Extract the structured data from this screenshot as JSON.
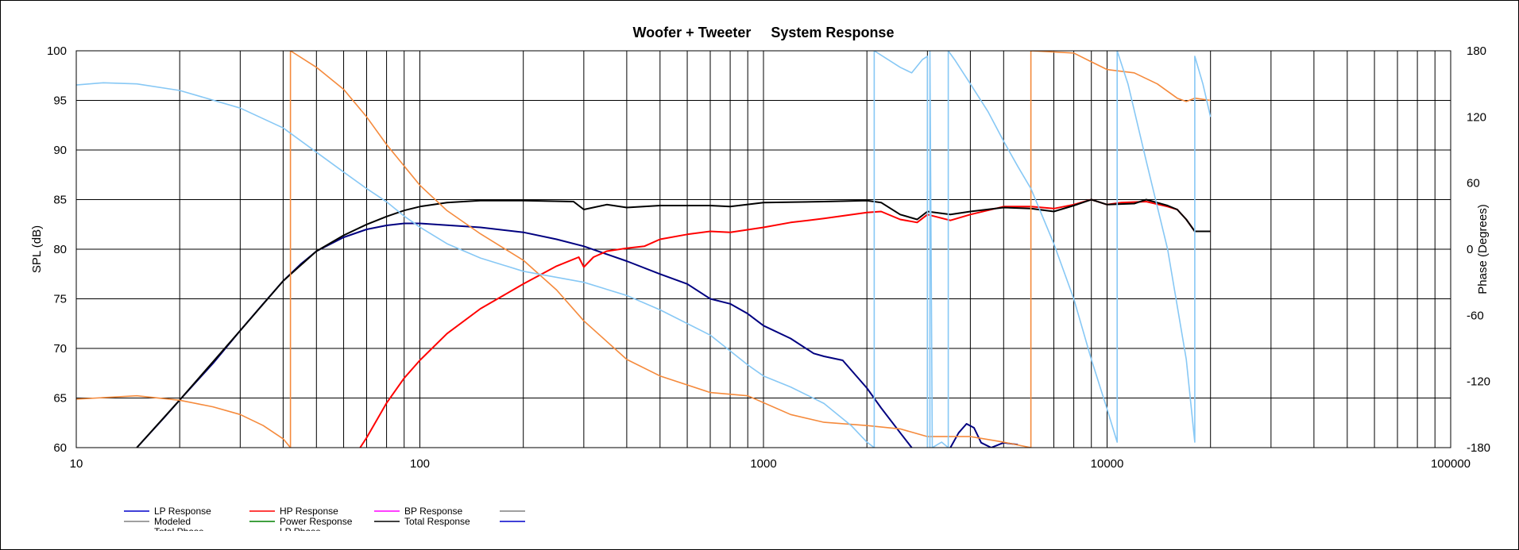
{
  "chart_data": {
    "type": "line",
    "title": "Woofer + Tweeter     System Response",
    "xlabel": "",
    "ylabel": "SPL (dB)",
    "y2label": "Phase (Degrees)",
    "x_scale": "log",
    "xlim": [
      10,
      100000
    ],
    "ylim": [
      60,
      100
    ],
    "y2lim": [
      -180,
      180
    ],
    "grid": true,
    "x_ticks": [
      "10",
      "100",
      "1000",
      "10000",
      "100000"
    ],
    "y_ticks": [
      "60",
      "65",
      "70",
      "75",
      "80",
      "85",
      "90",
      "95",
      "100"
    ],
    "y2_ticks": [
      "-180",
      "-120",
      "-60",
      "0",
      "60",
      "120",
      "180"
    ],
    "legend_position": "bottom",
    "legend": [
      {
        "label": "LP Response",
        "color": "#0000cc"
      },
      {
        "label": "HP Response",
        "color": "#ff0000"
      },
      {
        "label": "BP Response",
        "color": "#ff00ff"
      },
      {
        "label": "",
        "color": "#808080"
      },
      {
        "label": "Modeled",
        "color": "#808080"
      },
      {
        "label": "Power Response",
        "color": "#008000"
      },
      {
        "label": "Total Response",
        "color": "#000000"
      },
      {
        "label": "",
        "color": "#0000cc"
      },
      {
        "label": "Total Phase",
        "color": "#ffb080"
      },
      {
        "label": "LP Phase",
        "color": "#87c8f5"
      }
    ],
    "series": [
      {
        "name": "LP Response",
        "color": "#000080",
        "axis": "left",
        "points": [
          [
            15,
            60
          ],
          [
            18,
            63
          ],
          [
            20,
            64.8
          ],
          [
            25,
            68.5
          ],
          [
            30,
            71.8
          ],
          [
            35,
            74.5
          ],
          [
            40,
            76.8
          ],
          [
            45,
            78.5
          ],
          [
            50,
            79.8
          ],
          [
            60,
            81.2
          ],
          [
            70,
            82
          ],
          [
            80,
            82.4
          ],
          [
            90,
            82.6
          ],
          [
            100,
            82.6
          ],
          [
            150,
            82.2
          ],
          [
            200,
            81.7
          ],
          [
            250,
            81
          ],
          [
            300,
            80.3
          ],
          [
            350,
            79.5
          ],
          [
            400,
            78.8
          ],
          [
            500,
            77.5
          ],
          [
            600,
            76.5
          ],
          [
            700,
            75
          ],
          [
            800,
            74.5
          ],
          [
            900,
            73.5
          ],
          [
            1000,
            72.3
          ],
          [
            1200,
            71
          ],
          [
            1400,
            69.5
          ],
          [
            1500,
            69.2
          ],
          [
            1700,
            68.8
          ],
          [
            2000,
            66
          ],
          [
            2200,
            64
          ],
          [
            2500,
            61.5
          ],
          [
            2700,
            60
          ]
        ]
      },
      {
        "name": "LP Response (tail)",
        "color": "#000080",
        "axis": "left",
        "points": [
          [
            3500,
            60
          ],
          [
            3700,
            61.5
          ],
          [
            3900,
            62.4
          ],
          [
            4100,
            62
          ],
          [
            4300,
            60.5
          ],
          [
            4600,
            60
          ],
          [
            5000,
            60.5
          ],
          [
            5500,
            60.3
          ]
        ]
      },
      {
        "name": "HP Response",
        "color": "#ff0000",
        "axis": "left",
        "points": [
          [
            67,
            60
          ],
          [
            70,
            61
          ],
          [
            80,
            64.5
          ],
          [
            90,
            67
          ],
          [
            100,
            68.8
          ],
          [
            120,
            71.5
          ],
          [
            150,
            74
          ],
          [
            200,
            76.5
          ],
          [
            250,
            78.3
          ],
          [
            290,
            79.2
          ],
          [
            300,
            78.2
          ],
          [
            320,
            79.2
          ],
          [
            350,
            79.8
          ],
          [
            400,
            80.1
          ],
          [
            450,
            80.3
          ],
          [
            500,
            81
          ],
          [
            600,
            81.5
          ],
          [
            700,
            81.8
          ],
          [
            800,
            81.7
          ],
          [
            1000,
            82.2
          ],
          [
            1200,
            82.7
          ],
          [
            1500,
            83.1
          ],
          [
            2000,
            83.7
          ],
          [
            2200,
            83.8
          ],
          [
            2500,
            83
          ],
          [
            2800,
            82.7
          ],
          [
            3000,
            83.5
          ],
          [
            3500,
            82.9
          ],
          [
            4000,
            83.5
          ],
          [
            5000,
            84.3
          ],
          [
            6000,
            84.3
          ],
          [
            7000,
            84.1
          ],
          [
            8000,
            84.5
          ],
          [
            9000,
            85
          ],
          [
            10000,
            84.5
          ],
          [
            11000,
            84.7
          ],
          [
            13000,
            84.8
          ],
          [
            15000,
            84.3
          ],
          [
            16000,
            84
          ],
          [
            17000,
            83
          ],
          [
            18000,
            81.8
          ],
          [
            20000,
            81.8
          ]
        ]
      },
      {
        "name": "Total Response",
        "color": "#000000",
        "axis": "left",
        "points": [
          [
            15,
            60
          ],
          [
            20,
            64.8
          ],
          [
            30,
            71.8
          ],
          [
            40,
            76.8
          ],
          [
            50,
            79.8
          ],
          [
            60,
            81.4
          ],
          [
            70,
            82.5
          ],
          [
            80,
            83.3
          ],
          [
            90,
            83.9
          ],
          [
            100,
            84.3
          ],
          [
            120,
            84.7
          ],
          [
            150,
            84.9
          ],
          [
            200,
            84.9
          ],
          [
            280,
            84.8
          ],
          [
            300,
            84
          ],
          [
            350,
            84.5
          ],
          [
            400,
            84.2
          ],
          [
            500,
            84.4
          ],
          [
            700,
            84.4
          ],
          [
            800,
            84.3
          ],
          [
            1000,
            84.7
          ],
          [
            1500,
            84.8
          ],
          [
            2000,
            84.9
          ],
          [
            2200,
            84.7
          ],
          [
            2500,
            83.5
          ],
          [
            2800,
            83
          ],
          [
            3000,
            83.8
          ],
          [
            3500,
            83.5
          ],
          [
            4000,
            83.8
          ],
          [
            5000,
            84.2
          ],
          [
            6000,
            84.1
          ],
          [
            7000,
            83.8
          ],
          [
            8000,
            84.4
          ],
          [
            9000,
            85
          ],
          [
            10000,
            84.5
          ],
          [
            12000,
            84.6
          ],
          [
            13000,
            85
          ],
          [
            15000,
            84.4
          ],
          [
            16000,
            84
          ],
          [
            17000,
            83
          ],
          [
            18000,
            81.8
          ],
          [
            20000,
            81.8
          ]
        ]
      },
      {
        "name": "Total Phase (a)",
        "color": "#f58a3c",
        "axis": "right",
        "points": [
          [
            10,
            -136
          ],
          [
            15,
            -133
          ],
          [
            20,
            -137
          ],
          [
            25,
            -143
          ],
          [
            30,
            -150
          ],
          [
            35,
            -160
          ],
          [
            40,
            -172
          ],
          [
            42,
            -180
          ]
        ]
      },
      {
        "name": "Total Phase (b)",
        "color": "#f58a3c",
        "axis": "right",
        "points": [
          [
            42,
            -180
          ],
          [
            42,
            180
          ],
          [
            50,
            165
          ],
          [
            60,
            145
          ],
          [
            70,
            120
          ],
          [
            80,
            95
          ],
          [
            100,
            58
          ],
          [
            120,
            35
          ],
          [
            150,
            14
          ],
          [
            200,
            -10
          ],
          [
            250,
            -37
          ],
          [
            300,
            -65
          ],
          [
            400,
            -100
          ],
          [
            500,
            -115
          ],
          [
            700,
            -130
          ],
          [
            900,
            -133
          ],
          [
            1200,
            -150
          ],
          [
            1500,
            -157
          ],
          [
            2000,
            -160
          ],
          [
            2500,
            -163
          ],
          [
            3000,
            -170
          ],
          [
            4000,
            -170
          ],
          [
            5000,
            -175
          ],
          [
            6000,
            -180
          ]
        ]
      },
      {
        "name": "Total Phase (c)",
        "color": "#f58a3c",
        "axis": "right",
        "points": [
          [
            6000,
            -180
          ],
          [
            6000,
            180
          ],
          [
            8000,
            178
          ],
          [
            9000,
            170
          ],
          [
            10000,
            163
          ],
          [
            12000,
            160
          ],
          [
            14000,
            150
          ],
          [
            16000,
            137
          ],
          [
            17000,
            134
          ],
          [
            18000,
            137
          ],
          [
            20000,
            135
          ]
        ]
      },
      {
        "name": "LP Phase (a)",
        "color": "#87c8f5",
        "axis": "right",
        "points": [
          [
            10,
            149
          ],
          [
            12,
            151
          ],
          [
            15,
            150
          ],
          [
            20,
            144
          ],
          [
            30,
            128
          ],
          [
            40,
            110
          ],
          [
            50,
            88
          ],
          [
            60,
            70
          ],
          [
            70,
            55
          ],
          [
            80,
            43
          ],
          [
            90,
            30
          ],
          [
            100,
            20
          ],
          [
            120,
            5
          ],
          [
            150,
            -8
          ],
          [
            200,
            -20
          ],
          [
            300,
            -30
          ],
          [
            400,
            -42
          ],
          [
            500,
            -55
          ],
          [
            700,
            -78
          ],
          [
            900,
            -105
          ],
          [
            1000,
            -115
          ],
          [
            1200,
            -125
          ],
          [
            1500,
            -140
          ],
          [
            1800,
            -160
          ],
          [
            2000,
            -175
          ],
          [
            2100,
            -180
          ]
        ]
      },
      {
        "name": "LP Phase (b)",
        "color": "#87c8f5",
        "axis": "right",
        "points": [
          [
            2100,
            -180
          ],
          [
            2100,
            180
          ],
          [
            2500,
            165
          ],
          [
            2700,
            160
          ],
          [
            2900,
            172
          ],
          [
            3000,
            175
          ],
          [
            3000,
            -180
          ]
        ]
      },
      {
        "name": "LP Phase (c)",
        "color": "#87c8f5",
        "axis": "right",
        "points": [
          [
            3050,
            -180
          ],
          [
            3050,
            180
          ],
          [
            3100,
            -180
          ],
          [
            3300,
            -175
          ],
          [
            3450,
            -180
          ],
          [
            3450,
            180
          ],
          [
            3600,
            172
          ],
          [
            4000,
            150
          ],
          [
            4500,
            125
          ],
          [
            5000,
            98
          ],
          [
            5500,
            75
          ],
          [
            6000,
            55
          ],
          [
            7000,
            5
          ],
          [
            8000,
            -45
          ],
          [
            9000,
            -100
          ],
          [
            10000,
            -145
          ],
          [
            10700,
            -175
          ],
          [
            10700,
            180
          ],
          [
            11500,
            150
          ],
          [
            13000,
            80
          ],
          [
            15000,
            0
          ],
          [
            17000,
            -100
          ],
          [
            18000,
            -175
          ],
          [
            18000,
            175
          ],
          [
            19000,
            150
          ],
          [
            20000,
            120
          ]
        ]
      }
    ]
  }
}
